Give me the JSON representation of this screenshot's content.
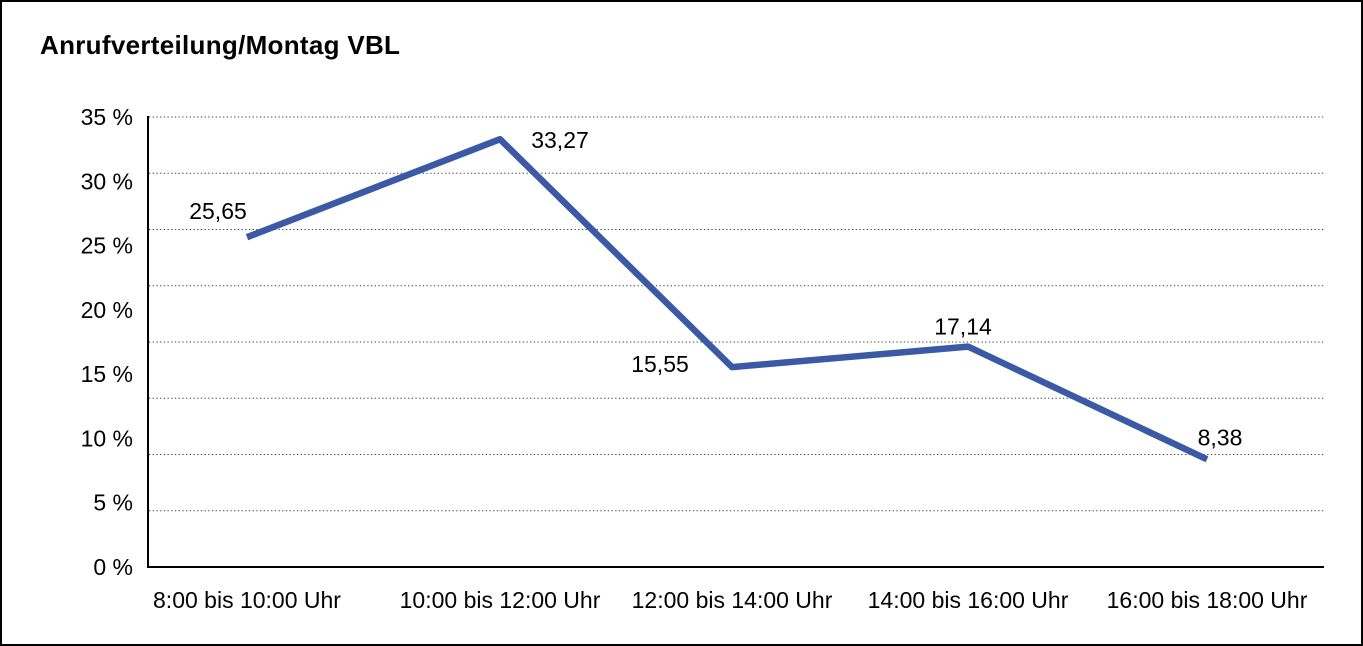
{
  "chart_data": {
    "type": "line",
    "title": "Anrufverteilung/Montag VBL",
    "categories": [
      "8:00 bis 10:00 Uhr",
      "10:00 bis 12:00 Uhr",
      "12:00 bis 14:00 Uhr",
      "14:00 bis 16:00 Uhr",
      "16:00 bis 18:00 Uhr"
    ],
    "values": [
      25.65,
      33.27,
      15.55,
      17.14,
      8.38
    ],
    "value_labels": [
      "25,65",
      "33,27",
      "15,55",
      "17,14",
      "8,38"
    ],
    "xlabel": "",
    "ylabel": "",
    "ylim": [
      0,
      35
    ],
    "y_ticks": [
      {
        "value": 0,
        "label": "0 %"
      },
      {
        "value": 5,
        "label": "5 %"
      },
      {
        "value": 10,
        "label": "10 %"
      },
      {
        "value": 15,
        "label": "15 %"
      },
      {
        "value": 20,
        "label": "20 %"
      },
      {
        "value": 25,
        "label": "25 %"
      },
      {
        "value": 30,
        "label": "30 %"
      },
      {
        "value": 35,
        "label": "35 %"
      }
    ],
    "grid": {
      "horizontal": true,
      "style": "dotted",
      "intervals": 8
    },
    "legend": "none"
  },
  "colors": {
    "line": "#3B59A5",
    "grid": "#3f3f3f",
    "axis": "#000000",
    "text": "#000000",
    "background": "#ffffff",
    "border": "#000000"
  }
}
